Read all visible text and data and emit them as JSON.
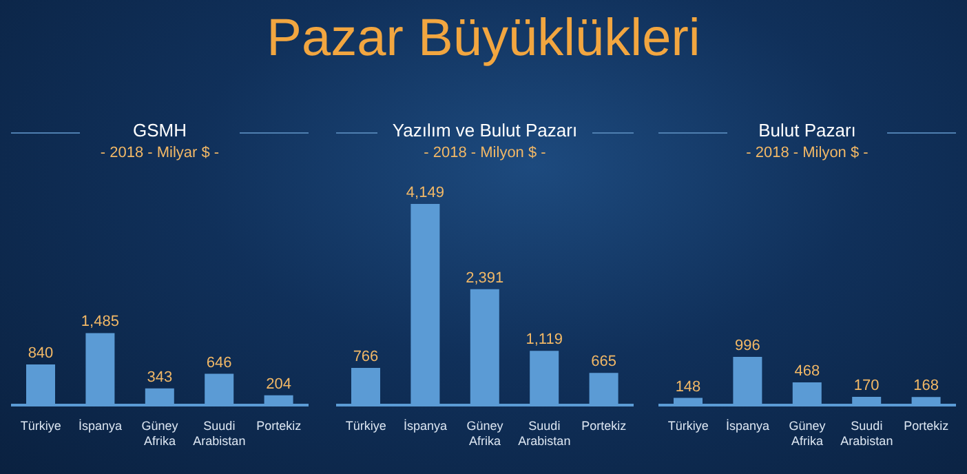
{
  "chart_data": [
    {
      "type": "bar",
      "title": "GSMH",
      "subtitle": "- 2018 - Milyar $ -",
      "annotations": [
        "Pazar Büyüklükleri"
      ],
      "categories": [
        "Türkiye",
        "İspanya",
        "Güney Afrika",
        "Suudi Arabistan",
        "Portekiz"
      ],
      "values": [
        840,
        1485,
        343,
        646,
        204
      ],
      "value_labels": [
        "840",
        "1,485",
        "343",
        "646",
        "204"
      ],
      "color": "#5b9bd5",
      "tick_labels": "x",
      "grid": false,
      "legend": false
    },
    {
      "type": "bar",
      "title": "Yazılım ve Bulut Pazarı",
      "subtitle": "- 2018 - Milyon $ -",
      "categories": [
        "Türkiye",
        "İspanya",
        "Güney Afrika",
        "Suudi Arabistan",
        "Portekiz"
      ],
      "values": [
        766,
        4149,
        2391,
        1119,
        665
      ],
      "value_labels": [
        "766",
        "4,149",
        "2,391",
        "1,119",
        "665"
      ],
      "color": "#5b9bd5",
      "tick_labels": "x",
      "grid": false,
      "legend": false
    },
    {
      "type": "bar",
      "title": "Bulut Pazarı",
      "subtitle": "- 2018 - Milyon $ -",
      "categories": [
        "Türkiye",
        "İspanya",
        "Güney Afrika",
        "Suudi Arabistan",
        "Portekiz"
      ],
      "values": [
        148,
        996,
        468,
        170,
        168
      ],
      "value_labels": [
        "148",
        "996",
        "468",
        "170",
        "168"
      ],
      "color": "#5b9bd5",
      "tick_labels": "x",
      "grid": false,
      "legend": false
    }
  ]
}
